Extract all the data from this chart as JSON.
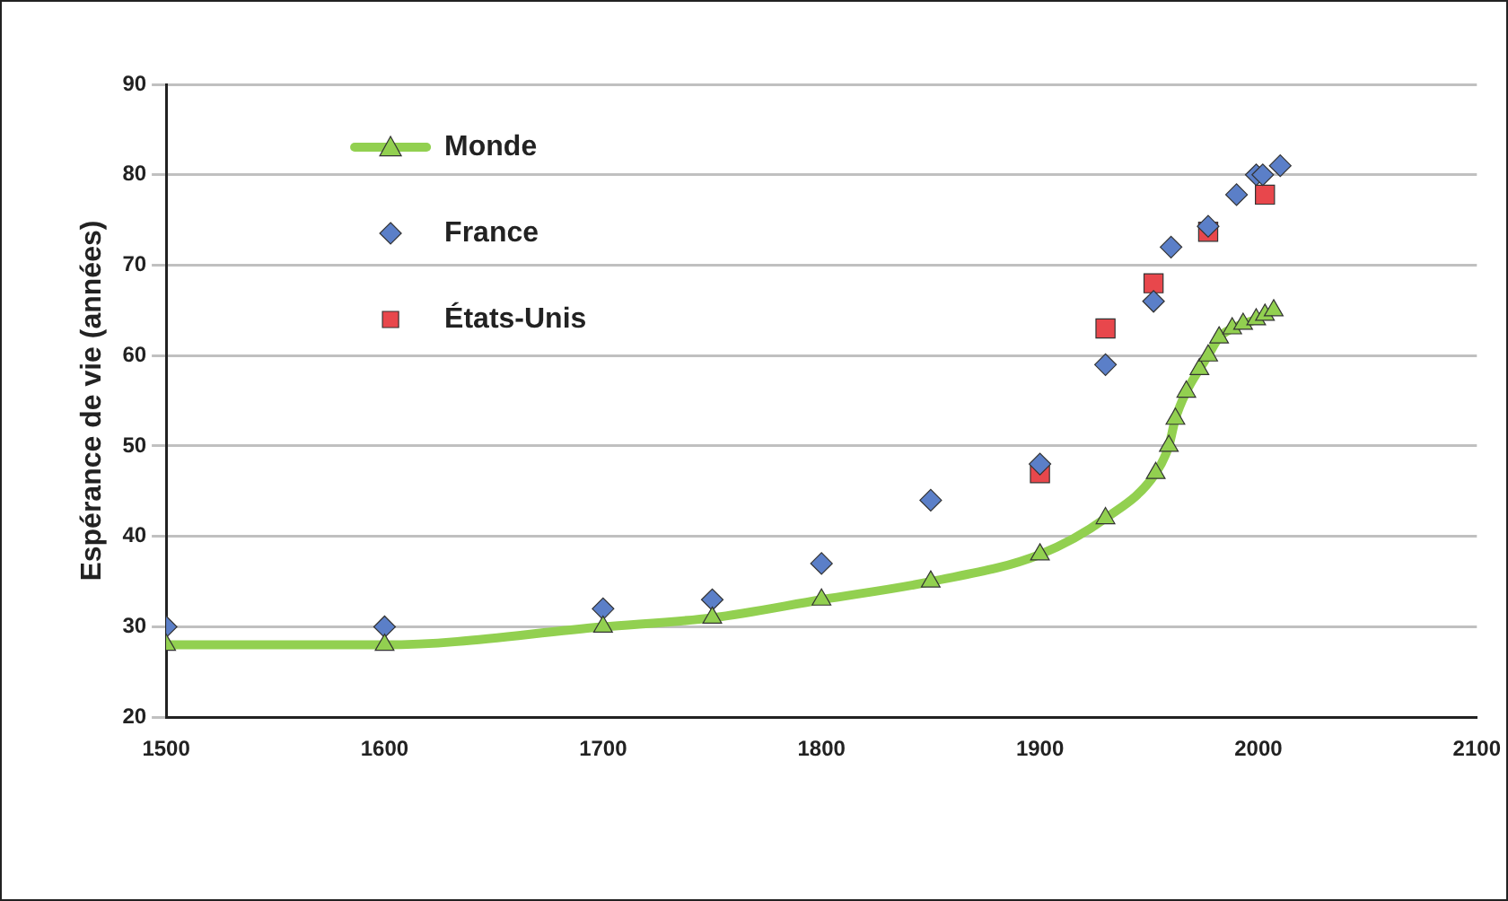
{
  "chart_data": {
    "type": "scatter",
    "ylabel": "Espérance de vie (années)",
    "xlim": [
      1500,
      2100
    ],
    "xticks": [
      1500,
      1600,
      1700,
      1800,
      1900,
      2000,
      2100
    ],
    "ylim": [
      20,
      90
    ],
    "yticks": [
      20,
      30,
      40,
      50,
      60,
      70,
      80,
      90
    ],
    "grid": "y",
    "legend": "top left",
    "series": [
      {
        "name": "Monde",
        "type": "line",
        "marker": "triangle",
        "color": "#92d050",
        "x": [
          1500,
          1600,
          1700,
          1750,
          1800,
          1850,
          1900,
          1930,
          1953,
          1959,
          1962,
          1967,
          1973,
          1977,
          1982,
          1988,
          1993,
          1999,
          2003,
          2007
        ],
        "values": [
          28,
          28,
          30,
          31,
          33,
          35,
          38,
          42,
          47,
          50,
          53,
          56,
          58.5,
          60,
          62,
          63,
          63.5,
          64,
          64.5,
          65
        ]
      },
      {
        "name": "France",
        "marker": "diamond",
        "color": "#5b7fc8",
        "x": [
          1500,
          1600,
          1700,
          1750,
          1800,
          1850,
          1900,
          1930,
          1952,
          1960,
          1977,
          1990,
          1999,
          2002,
          2010
        ],
        "values": [
          30,
          30,
          32,
          33,
          37,
          44,
          48,
          59,
          66,
          72,
          74.3,
          77.8,
          80,
          80,
          81
        ]
      },
      {
        "name": "États-Unis",
        "marker": "square",
        "color": "#e8474c",
        "x": [
          1900,
          1930,
          1952,
          1977,
          2003
        ],
        "values": [
          47,
          63,
          68,
          73.7,
          77.8
        ]
      }
    ]
  }
}
